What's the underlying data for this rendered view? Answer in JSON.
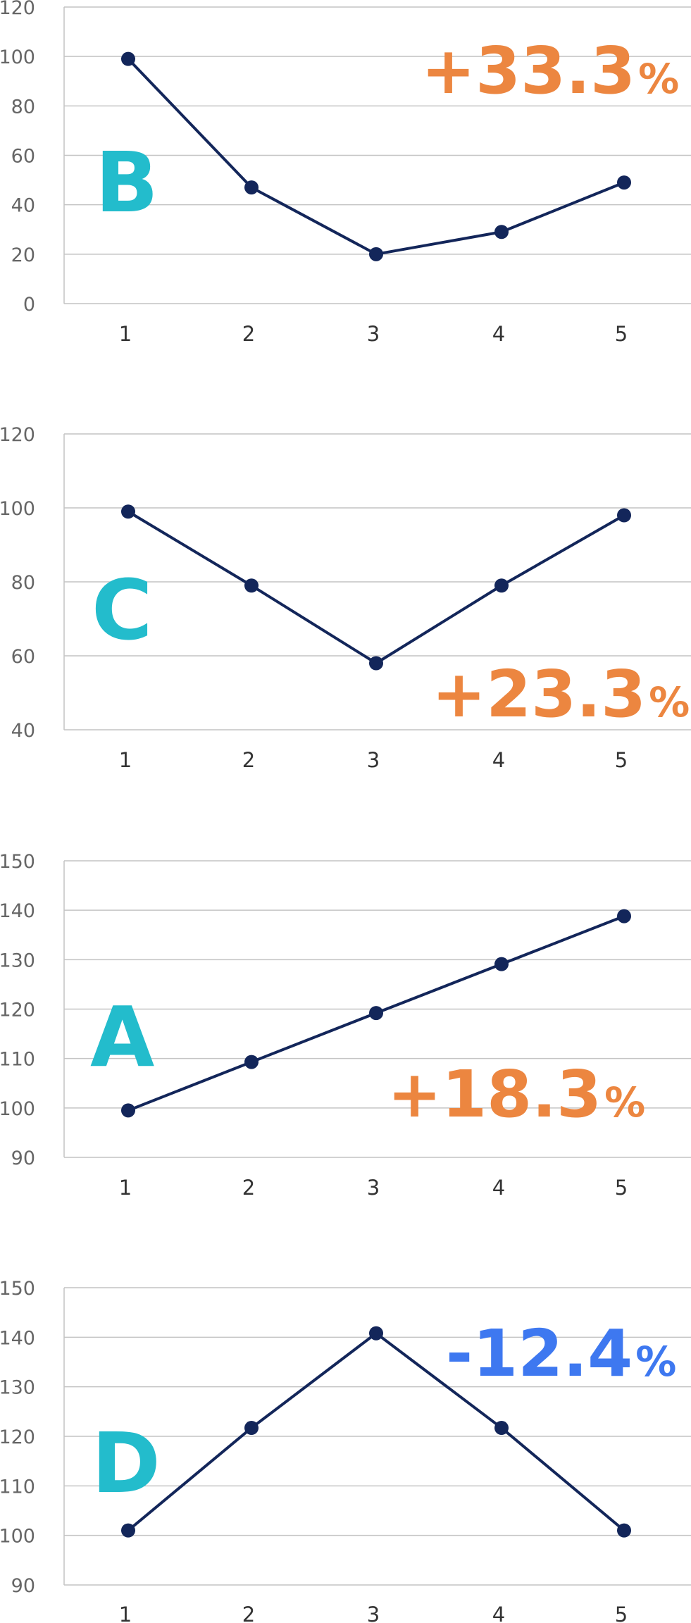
{
  "chart_data": [
    {
      "type": "line",
      "label": "B",
      "change": {
        "value": "+33.3",
        "unit": "%",
        "color": "#ec8640"
      },
      "categories": [
        "1",
        "2",
        "3",
        "4",
        "5"
      ],
      "values": [
        99,
        47,
        20,
        29,
        49
      ],
      "ylim": [
        0,
        120
      ],
      "yticks": [
        "0",
        "20",
        "40",
        "60",
        "80",
        "100",
        "120"
      ],
      "grid": true
    },
    {
      "type": "line",
      "label": "C",
      "change": {
        "value": "+23.3",
        "unit": "%",
        "color": "#ec8640"
      },
      "categories": [
        "1",
        "2",
        "3",
        "4",
        "5"
      ],
      "values": [
        99,
        79,
        58,
        79,
        98
      ],
      "ylim": [
        40,
        120
      ],
      "yticks": [
        "40",
        "60",
        "80",
        "100",
        "120"
      ],
      "grid": true
    },
    {
      "type": "line",
      "label": "A",
      "change": {
        "value": "+18.3",
        "unit": "%",
        "color": "#ec8640"
      },
      "categories": [
        "1",
        "2",
        "3",
        "4",
        "5"
      ],
      "values": [
        99.5,
        109.3,
        119.2,
        129.1,
        138.8
      ],
      "ylim": [
        90,
        150
      ],
      "yticks": [
        "90",
        "100",
        "110",
        "120",
        "130",
        "140",
        "150"
      ],
      "grid": true
    },
    {
      "type": "line",
      "label": "D",
      "change": {
        "value": "-12.4",
        "unit": "%",
        "color": "#3e78f0"
      },
      "categories": [
        "1",
        "2",
        "3",
        "4",
        "5"
      ],
      "values": [
        101,
        121.7,
        140.8,
        121.7,
        101
      ],
      "ylim": [
        90,
        150
      ],
      "yticks": [
        "90",
        "100",
        "110",
        "120",
        "130",
        "140",
        "150"
      ],
      "grid": true
    }
  ],
  "style": {
    "line_color": "#13265a",
    "grid_color": "#c4c4c4",
    "letter_color": "#23bccc"
  }
}
